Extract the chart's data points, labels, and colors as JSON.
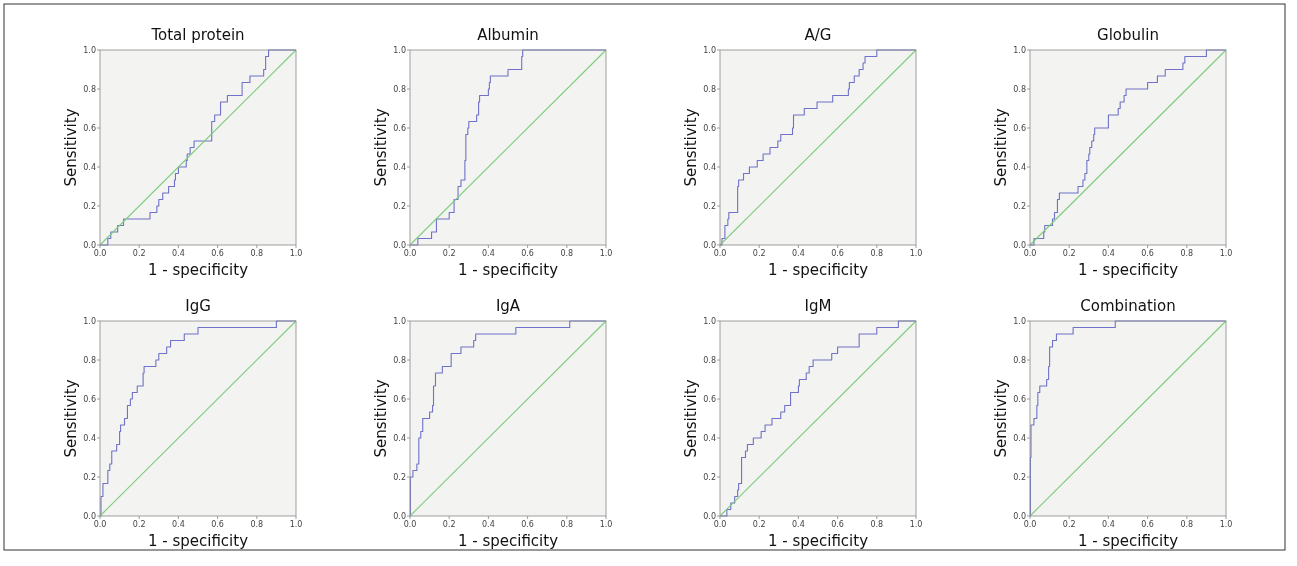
{
  "chart_data": [
    {
      "type": "step",
      "title": "Total protein",
      "xlabel": "1 - specificity",
      "ylabel": "Sensitivity",
      "xlim": [
        0,
        1
      ],
      "ylim": [
        0,
        1
      ],
      "xticks": [
        {
          "value": 0,
          "label": "0.0"
        },
        {
          "value": 0.2,
          "label": "0.2"
        },
        {
          "value": 0.4,
          "label": "0.4"
        },
        {
          "value": 0.6,
          "label": "0.6"
        },
        {
          "value": 0.8,
          "label": "0.8"
        },
        {
          "value": 1,
          "label": "1.0"
        }
      ],
      "yticks": [
        {
          "value": 0,
          "label": "0.0"
        },
        {
          "value": 0.2,
          "label": "0.2"
        },
        {
          "value": 0.4,
          "label": "0.4"
        },
        {
          "value": 0.6,
          "label": "0.6"
        },
        {
          "value": 0.8,
          "label": "0.8"
        },
        {
          "value": 1,
          "label": "1.0"
        }
      ],
      "series": [
        {
          "type": "step",
          "color": "#6f72c8",
          "x": [
            0,
            0.04,
            0.055,
            0.09,
            0.12,
            0.255,
            0.29,
            0.3,
            0.32,
            0.35,
            0.38,
            0.385,
            0.4,
            0.44,
            0.445,
            0.46,
            0.48,
            0.57,
            0.585,
            0.615,
            0.65,
            0.725,
            0.765,
            0.835,
            0.845,
            0.86,
            1
          ],
          "values": [
            0,
            0.033,
            0.067,
            0.1,
            0.133,
            0.167,
            0.2,
            0.233,
            0.267,
            0.3,
            0.333,
            0.367,
            0.4,
            0.433,
            0.467,
            0.5,
            0.533,
            0.633,
            0.667,
            0.733,
            0.767,
            0.833,
            0.867,
            0.9,
            0.967,
            1,
            1
          ]
        },
        {
          "type": "line",
          "color": "#7ccc7c",
          "x": [
            0,
            1
          ],
          "values": [
            0,
            1
          ]
        }
      ]
    },
    {
      "type": "step",
      "title": "Albumin",
      "xlabel": "1 - specificity",
      "ylabel": "Sensitivity",
      "xlim": [
        0,
        1
      ],
      "ylim": [
        0,
        1
      ],
      "xticks": [
        {
          "value": 0,
          "label": "0.0"
        },
        {
          "value": 0.2,
          "label": "0.2"
        },
        {
          "value": 0.4,
          "label": "0.4"
        },
        {
          "value": 0.6,
          "label": "0.6"
        },
        {
          "value": 0.8,
          "label": "0.8"
        },
        {
          "value": 1,
          "label": "1.0"
        }
      ],
      "yticks": [
        {
          "value": 0,
          "label": "0.0"
        },
        {
          "value": 0.2,
          "label": "0.2"
        },
        {
          "value": 0.4,
          "label": "0.4"
        },
        {
          "value": 0.6,
          "label": "0.6"
        },
        {
          "value": 0.8,
          "label": "0.8"
        },
        {
          "value": 1,
          "label": "1.0"
        }
      ],
      "series": [
        {
          "type": "step",
          "color": "#6f72c8",
          "x": [
            0,
            0.04,
            0.11,
            0.135,
            0.2,
            0.225,
            0.245,
            0.26,
            0.28,
            0.285,
            0.295,
            0.3,
            0.34,
            0.35,
            0.355,
            0.4,
            0.405,
            0.41,
            0.5,
            0.57,
            0.575,
            1
          ],
          "values": [
            0,
            0.033,
            0.067,
            0.133,
            0.167,
            0.233,
            0.3,
            0.333,
            0.433,
            0.567,
            0.6,
            0.633,
            0.667,
            0.733,
            0.767,
            0.8,
            0.833,
            0.867,
            0.9,
            0.967,
            1,
            1
          ]
        },
        {
          "type": "line",
          "color": "#7ccc7c",
          "x": [
            0,
            1
          ],
          "values": [
            0,
            1
          ]
        }
      ]
    },
    {
      "type": "step",
      "title": "A/G",
      "xlabel": "1 - specificity",
      "ylabel": "Sensitivity",
      "xlim": [
        0,
        1
      ],
      "ylim": [
        0,
        1
      ],
      "xticks": [
        {
          "value": 0,
          "label": "0.0"
        },
        {
          "value": 0.2,
          "label": "0.2"
        },
        {
          "value": 0.4,
          "label": "0.4"
        },
        {
          "value": 0.6,
          "label": "0.6"
        },
        {
          "value": 0.8,
          "label": "0.8"
        },
        {
          "value": 1,
          "label": "1.0"
        }
      ],
      "yticks": [
        {
          "value": 0,
          "label": "0.0"
        },
        {
          "value": 0.2,
          "label": "0.2"
        },
        {
          "value": 0.4,
          "label": "0.4"
        },
        {
          "value": 0.6,
          "label": "0.6"
        },
        {
          "value": 0.8,
          "label": "0.8"
        },
        {
          "value": 1,
          "label": "1.0"
        }
      ],
      "series": [
        {
          "type": "step",
          "color": "#6f72c8",
          "x": [
            0,
            0.01,
            0.025,
            0.04,
            0.045,
            0.09,
            0.095,
            0.12,
            0.15,
            0.19,
            0.22,
            0.255,
            0.295,
            0.31,
            0.37,
            0.375,
            0.43,
            0.495,
            0.575,
            0.655,
            0.66,
            0.685,
            0.71,
            0.73,
            0.74,
            0.8,
            1
          ],
          "values": [
            0,
            0.033,
            0.1,
            0.133,
            0.167,
            0.3,
            0.333,
            0.367,
            0.4,
            0.433,
            0.467,
            0.5,
            0.533,
            0.567,
            0.6,
            0.667,
            0.7,
            0.733,
            0.767,
            0.8,
            0.833,
            0.867,
            0.9,
            0.933,
            0.967,
            1,
            1
          ]
        },
        {
          "type": "line",
          "color": "#7ccc7c",
          "x": [
            0,
            1
          ],
          "values": [
            0,
            1
          ]
        }
      ]
    },
    {
      "type": "step",
      "title": "Globulin",
      "xlabel": "1 - specificity",
      "ylabel": "Sensitivity",
      "xlim": [
        0,
        1
      ],
      "ylim": [
        0,
        1
      ],
      "xticks": [
        {
          "value": 0,
          "label": "0.0"
        },
        {
          "value": 0.2,
          "label": "0.2"
        },
        {
          "value": 0.4,
          "label": "0.4"
        },
        {
          "value": 0.6,
          "label": "0.6"
        },
        {
          "value": 0.8,
          "label": "0.8"
        },
        {
          "value": 1,
          "label": "1.0"
        }
      ],
      "yticks": [
        {
          "value": 0,
          "label": "0.0"
        },
        {
          "value": 0.2,
          "label": "0.2"
        },
        {
          "value": 0.4,
          "label": "0.4"
        },
        {
          "value": 0.6,
          "label": "0.6"
        },
        {
          "value": 0.8,
          "label": "0.8"
        },
        {
          "value": 1,
          "label": "1.0"
        }
      ],
      "series": [
        {
          "type": "step",
          "color": "#6f72c8",
          "x": [
            0,
            0.02,
            0.07,
            0.075,
            0.115,
            0.125,
            0.14,
            0.15,
            0.245,
            0.27,
            0.28,
            0.29,
            0.3,
            0.305,
            0.315,
            0.325,
            0.33,
            0.4,
            0.45,
            0.46,
            0.48,
            0.49,
            0.6,
            0.65,
            0.69,
            0.78,
            0.79,
            0.9,
            1
          ],
          "values": [
            0,
            0.033,
            0.067,
            0.1,
            0.133,
            0.167,
            0.233,
            0.267,
            0.3,
            0.333,
            0.367,
            0.433,
            0.467,
            0.5,
            0.533,
            0.567,
            0.6,
            0.667,
            0.7,
            0.733,
            0.767,
            0.8,
            0.833,
            0.867,
            0.9,
            0.933,
            0.967,
            1,
            1
          ]
        },
        {
          "type": "line",
          "color": "#7ccc7c",
          "x": [
            0,
            1
          ],
          "values": [
            0,
            1
          ]
        }
      ]
    },
    {
      "type": "step",
      "title": "IgG",
      "xlabel": "1 - specificity",
      "ylabel": "Sensitivity",
      "xlim": [
        0,
        1
      ],
      "ylim": [
        0,
        1
      ],
      "xticks": [
        {
          "value": 0,
          "label": "0.0"
        },
        {
          "value": 0.2,
          "label": "0.2"
        },
        {
          "value": 0.4,
          "label": "0.4"
        },
        {
          "value": 0.6,
          "label": "0.6"
        },
        {
          "value": 0.8,
          "label": "0.8"
        },
        {
          "value": 1,
          "label": "1.0"
        }
      ],
      "yticks": [
        {
          "value": 0,
          "label": "0.0"
        },
        {
          "value": 0.2,
          "label": "0.2"
        },
        {
          "value": 0.4,
          "label": "0.4"
        },
        {
          "value": 0.6,
          "label": "0.6"
        },
        {
          "value": 0.8,
          "label": "0.8"
        },
        {
          "value": 1,
          "label": "1.0"
        }
      ],
      "series": [
        {
          "type": "step",
          "color": "#6f72c8",
          "x": [
            0,
            0.005,
            0.015,
            0.04,
            0.05,
            0.06,
            0.085,
            0.1,
            0.105,
            0.125,
            0.14,
            0.155,
            0.165,
            0.19,
            0.22,
            0.225,
            0.285,
            0.3,
            0.34,
            0.36,
            0.43,
            0.5,
            0.9,
            1
          ],
          "values": [
            0,
            0.1,
            0.167,
            0.233,
            0.267,
            0.333,
            0.367,
            0.433,
            0.467,
            0.5,
            0.567,
            0.6,
            0.633,
            0.667,
            0.733,
            0.767,
            0.8,
            0.833,
            0.867,
            0.9,
            0.933,
            0.967,
            1,
            1
          ]
        },
        {
          "type": "line",
          "color": "#7ccc7c",
          "x": [
            0,
            1
          ],
          "values": [
            0,
            1
          ]
        }
      ]
    },
    {
      "type": "step",
      "title": "IgA",
      "xlabel": "1 - specificity",
      "ylabel": "Sensitivity",
      "xlim": [
        0,
        1
      ],
      "ylim": [
        0,
        1
      ],
      "xticks": [
        {
          "value": 0,
          "label": "0.0"
        },
        {
          "value": 0.2,
          "label": "0.2"
        },
        {
          "value": 0.4,
          "label": "0.4"
        },
        {
          "value": 0.6,
          "label": "0.6"
        },
        {
          "value": 0.8,
          "label": "0.8"
        },
        {
          "value": 1,
          "label": "1.0"
        }
      ],
      "yticks": [
        {
          "value": 0,
          "label": "0.0"
        },
        {
          "value": 0.2,
          "label": "0.2"
        },
        {
          "value": 0.4,
          "label": "0.4"
        },
        {
          "value": 0.6,
          "label": "0.6"
        },
        {
          "value": 0.8,
          "label": "0.8"
        },
        {
          "value": 1,
          "label": "1.0"
        }
      ],
      "series": [
        {
          "type": "step",
          "color": "#6f72c8",
          "x": [
            0,
            0.002,
            0.015,
            0.035,
            0.045,
            0.055,
            0.065,
            0.1,
            0.115,
            0.12,
            0.13,
            0.165,
            0.21,
            0.26,
            0.325,
            0.335,
            0.54,
            0.815,
            1
          ],
          "values": [
            0,
            0.2,
            0.233,
            0.267,
            0.4,
            0.433,
            0.5,
            0.533,
            0.567,
            0.667,
            0.733,
            0.767,
            0.833,
            0.867,
            0.9,
            0.933,
            0.967,
            1,
            1
          ]
        },
        {
          "type": "line",
          "color": "#7ccc7c",
          "x": [
            0,
            1
          ],
          "values": [
            0,
            1
          ]
        }
      ]
    },
    {
      "type": "step",
      "title": "IgM",
      "xlabel": "1 - specificity",
      "ylabel": "Sensitivity",
      "xlim": [
        0,
        1
      ],
      "ylim": [
        0,
        1
      ],
      "xticks": [
        {
          "value": 0,
          "label": "0.0"
        },
        {
          "value": 0.2,
          "label": "0.2"
        },
        {
          "value": 0.4,
          "label": "0.4"
        },
        {
          "value": 0.6,
          "label": "0.6"
        },
        {
          "value": 0.8,
          "label": "0.8"
        },
        {
          "value": 1,
          "label": "1.0"
        }
      ],
      "yticks": [
        {
          "value": 0,
          "label": "0.0"
        },
        {
          "value": 0.2,
          "label": "0.2"
        },
        {
          "value": 0.4,
          "label": "0.4"
        },
        {
          "value": 0.6,
          "label": "0.6"
        },
        {
          "value": 0.8,
          "label": "0.8"
        },
        {
          "value": 1,
          "label": "1.0"
        }
      ],
      "series": [
        {
          "type": "step",
          "color": "#6f72c8",
          "x": [
            0,
            0.035,
            0.055,
            0.075,
            0.09,
            0.095,
            0.11,
            0.13,
            0.14,
            0.17,
            0.21,
            0.23,
            0.265,
            0.31,
            0.33,
            0.36,
            0.4,
            0.405,
            0.44,
            0.455,
            0.475,
            0.57,
            0.6,
            0.71,
            0.8,
            0.91,
            1
          ],
          "values": [
            0,
            0.033,
            0.067,
            0.1,
            0.133,
            0.167,
            0.3,
            0.333,
            0.367,
            0.4,
            0.433,
            0.467,
            0.5,
            0.533,
            0.567,
            0.633,
            0.667,
            0.7,
            0.733,
            0.767,
            0.8,
            0.833,
            0.867,
            0.933,
            0.967,
            1,
            1
          ]
        },
        {
          "type": "line",
          "color": "#7ccc7c",
          "x": [
            0,
            1
          ],
          "values": [
            0,
            1
          ]
        }
      ]
    },
    {
      "type": "step",
      "title": "Combination",
      "xlabel": "1 - specificity",
      "ylabel": "Sensitivity",
      "xlim": [
        0,
        1
      ],
      "ylim": [
        0,
        1
      ],
      "xticks": [
        {
          "value": 0,
          "label": "0.0"
        },
        {
          "value": 0.2,
          "label": "0.2"
        },
        {
          "value": 0.4,
          "label": "0.4"
        },
        {
          "value": 0.6,
          "label": "0.6"
        },
        {
          "value": 0.8,
          "label": "0.8"
        },
        {
          "value": 1,
          "label": "1.0"
        }
      ],
      "yticks": [
        {
          "value": 0,
          "label": "0.0"
        },
        {
          "value": 0.2,
          "label": "0.2"
        },
        {
          "value": 0.4,
          "label": "0.4"
        },
        {
          "value": 0.6,
          "label": "0.6"
        },
        {
          "value": 0.8,
          "label": "0.8"
        },
        {
          "value": 1,
          "label": "1.0"
        }
      ],
      "series": [
        {
          "type": "step",
          "color": "#6f72c8",
          "x": [
            0,
            0.002,
            0.005,
            0.02,
            0.035,
            0.04,
            0.05,
            0.085,
            0.095,
            0.1,
            0.115,
            0.135,
            0.22,
            0.435,
            1
          ],
          "values": [
            0,
            0.3,
            0.467,
            0.5,
            0.567,
            0.633,
            0.667,
            0.7,
            0.767,
            0.867,
            0.9,
            0.933,
            0.967,
            1,
            1
          ]
        },
        {
          "type": "line",
          "color": "#7ccc7c",
          "x": [
            0,
            1
          ],
          "values": [
            0,
            1
          ]
        }
      ]
    }
  ]
}
